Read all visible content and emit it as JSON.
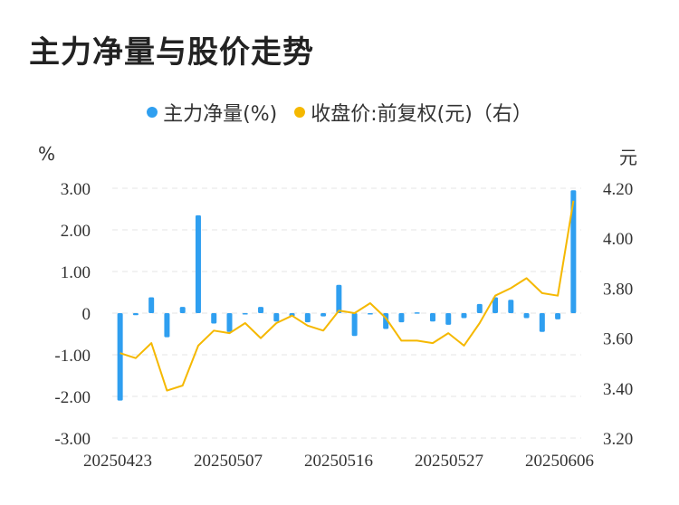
{
  "title": "主力净量与股价走势",
  "legend": [
    {
      "label": "主力净量(%)",
      "color": "#2f9ff0"
    },
    {
      "label": "收盘价:前复权(元)（右）",
      "color": "#f5b800"
    }
  ],
  "units": {
    "left": "%",
    "right": "元"
  },
  "chart_data": {
    "type": "bar+line",
    "x_ticks": [
      "20250423",
      "20250507",
      "20250516",
      "20250527",
      "20250606"
    ],
    "left_axis": {
      "ticks": [
        "3.00",
        "2.00",
        "1.00",
        "0",
        "-1.00",
        "-2.00",
        "-3.00"
      ],
      "range": [
        -3,
        3
      ]
    },
    "right_axis": {
      "ticks": [
        "4.20",
        "4.00",
        "3.80",
        "3.60",
        "3.40",
        "3.20"
      ],
      "range": [
        3.2,
        4.2
      ]
    },
    "series": [
      {
        "name": "主力净量(%)",
        "type": "bar",
        "color": "#2f9ff0",
        "values": [
          -2.1,
          -0.05,
          0.38,
          -0.58,
          0.15,
          2.35,
          -0.25,
          -0.45,
          -0.02,
          0.15,
          -0.2,
          -0.08,
          -0.22,
          -0.08,
          0.68,
          -0.55,
          -0.02,
          -0.38,
          -0.22,
          0.02,
          -0.2,
          -0.28,
          -0.12,
          0.22,
          0.38,
          0.32,
          -0.12,
          -0.45,
          -0.15,
          2.95
        ]
      },
      {
        "name": "收盘价:前复权(元)（右）",
        "type": "line",
        "color": "#f5b800",
        "values": [
          3.54,
          3.52,
          3.58,
          3.39,
          3.41,
          3.57,
          3.63,
          3.62,
          3.66,
          3.6,
          3.66,
          3.69,
          3.65,
          3.63,
          3.71,
          3.7,
          3.74,
          3.68,
          3.59,
          3.59,
          3.58,
          3.62,
          3.57,
          3.66,
          3.77,
          3.8,
          3.84,
          3.78,
          3.77,
          4.15
        ]
      }
    ]
  }
}
